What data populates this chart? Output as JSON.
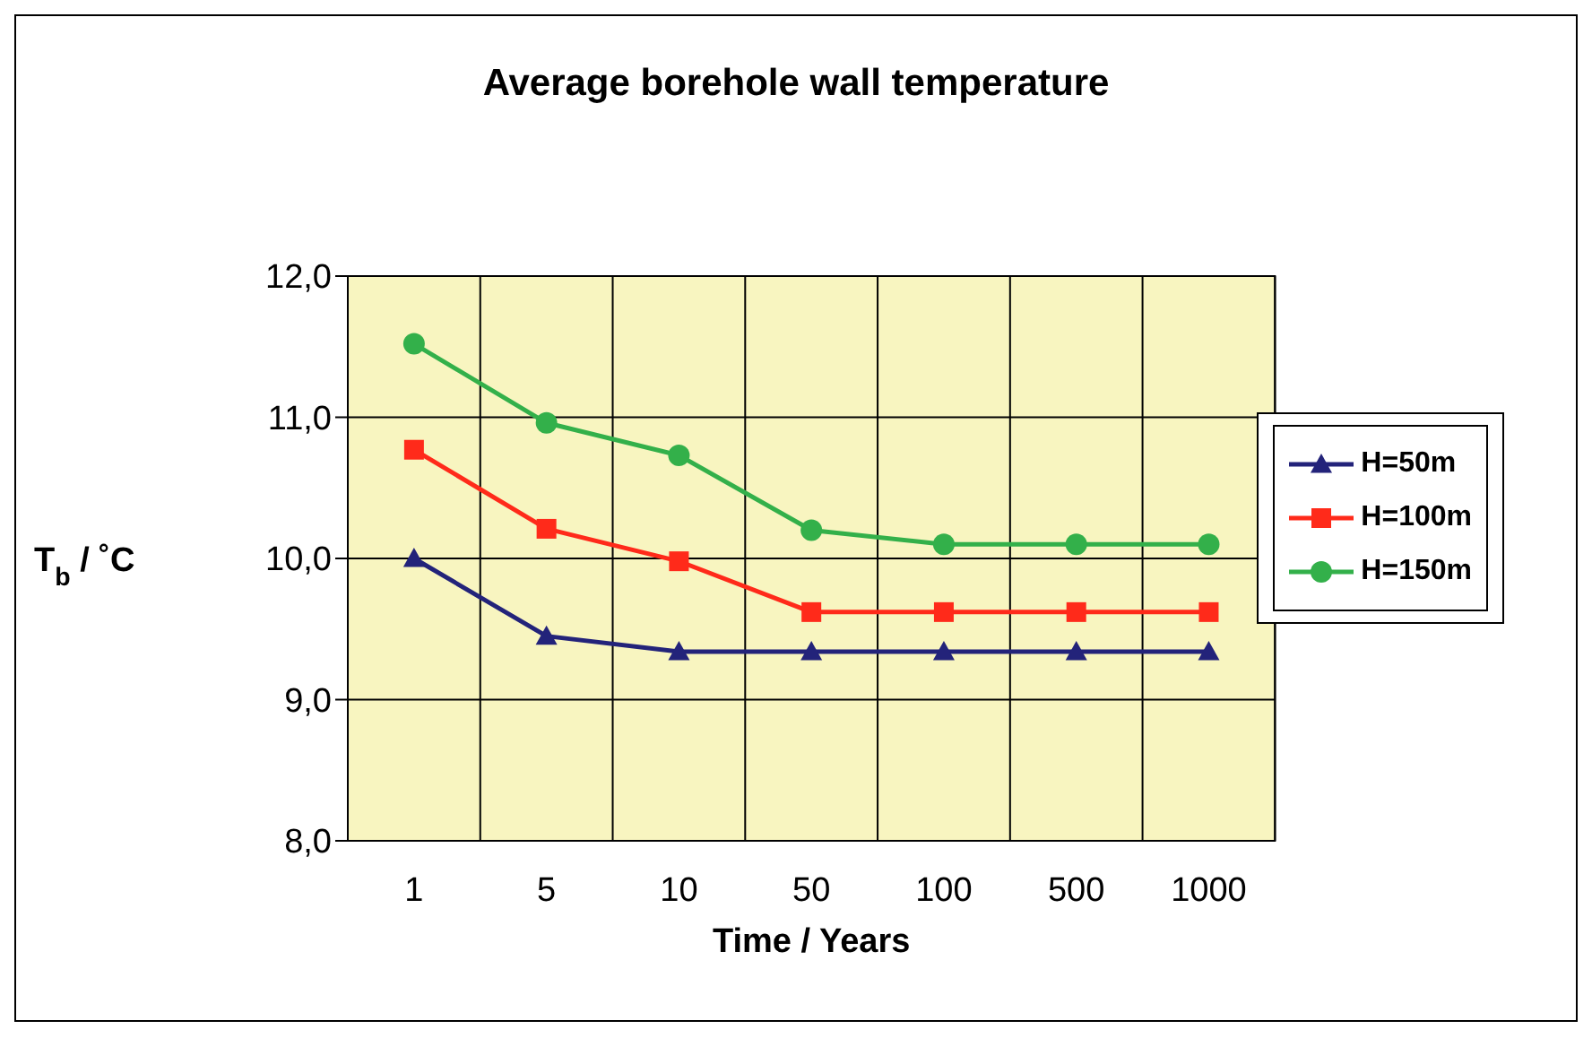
{
  "chart_data": {
    "type": "line",
    "title": "Average borehole wall temperature",
    "xlabel": "Time / Years",
    "ylabel": "T$_{b}$ / ˚C",
    "categories": [
      "1",
      "5",
      "10",
      "50",
      "100",
      "500",
      "1000"
    ],
    "series": [
      {
        "name": "H=50m",
        "color": "#23237a",
        "marker": "triangle",
        "values": [
          10.0,
          9.45,
          9.34,
          9.34,
          9.34,
          9.34,
          9.34
        ]
      },
      {
        "name": "H=100m",
        "color": "#ff2a1a",
        "marker": "square",
        "values": [
          10.77,
          10.21,
          9.98,
          9.62,
          9.62,
          9.62,
          9.62
        ]
      },
      {
        "name": "H=150m",
        "color": "#33b04a",
        "marker": "circle",
        "values": [
          11.52,
          10.96,
          10.73,
          10.2,
          10.1,
          10.1,
          10.1
        ]
      }
    ],
    "ylim": [
      8,
      12
    ],
    "yticks": [
      {
        "value": 8,
        "label": "8,0"
      },
      {
        "value": 9,
        "label": "9,0"
      },
      {
        "value": 10,
        "label": "10,0"
      },
      {
        "value": 11,
        "label": "11,0"
      },
      {
        "value": 12,
        "label": "12,0"
      }
    ],
    "grid": true,
    "legend": "right",
    "line_style": "solid"
  }
}
